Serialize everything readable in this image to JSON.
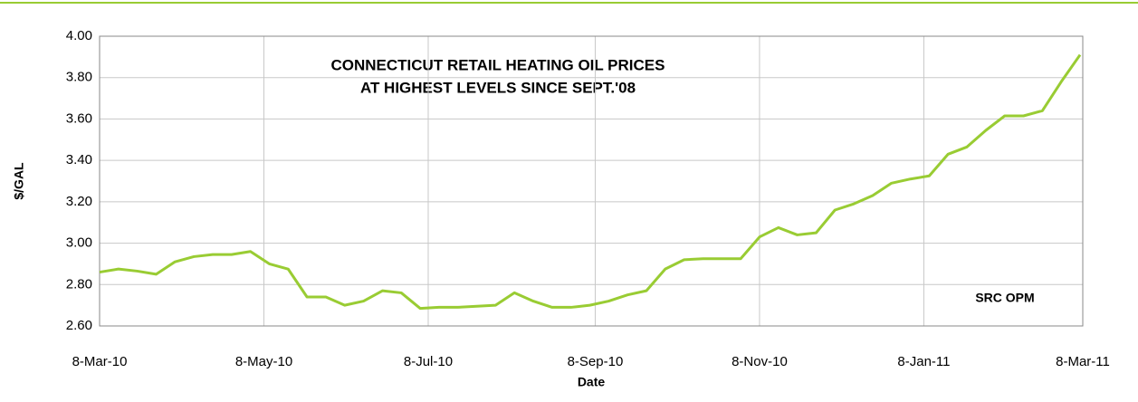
{
  "chart_data": {
    "type": "line",
    "title": [
      "CONNECTICUT RETAIL HEATING OIL PRICES",
      "AT HIGHEST LEVELS SINCE SEPT.'08"
    ],
    "annotation": "SRC OPM",
    "x_label": "Date",
    "y_label": "$/GAL",
    "x": [
      "2010-03-08",
      "2010-03-15",
      "2010-03-22",
      "2010-03-29",
      "2010-04-05",
      "2010-04-12",
      "2010-04-19",
      "2010-04-26",
      "2010-05-03",
      "2010-05-10",
      "2010-05-17",
      "2010-05-24",
      "2010-05-31",
      "2010-06-07",
      "2010-06-14",
      "2010-06-21",
      "2010-06-28",
      "2010-07-05",
      "2010-07-12",
      "2010-07-19",
      "2010-07-26",
      "2010-08-02",
      "2010-08-09",
      "2010-08-16",
      "2010-08-23",
      "2010-08-30",
      "2010-09-06",
      "2010-09-13",
      "2010-09-20",
      "2010-09-27",
      "2010-10-04",
      "2010-10-11",
      "2010-10-18",
      "2010-10-25",
      "2010-11-01",
      "2010-11-08",
      "2010-11-15",
      "2010-11-22",
      "2010-11-29",
      "2010-12-06",
      "2010-12-13",
      "2010-12-20",
      "2010-12-27",
      "2011-01-03",
      "2011-01-10",
      "2011-01-17",
      "2011-01-24",
      "2011-01-31",
      "2011-02-07",
      "2011-02-14",
      "2011-02-21",
      "2011-02-28",
      "2011-03-07"
    ],
    "series": [
      {
        "color": "#99cc33",
        "values": [
          2.86,
          2.875,
          2.865,
          2.85,
          2.91,
          2.935,
          2.945,
          2.945,
          2.96,
          2.9,
          2.875,
          2.74,
          2.74,
          2.7,
          2.72,
          2.77,
          2.76,
          2.685,
          2.69,
          2.69,
          2.695,
          2.7,
          2.76,
          2.72,
          2.69,
          2.69,
          2.7,
          2.72,
          2.75,
          2.77,
          2.875,
          2.92,
          2.925,
          2.925,
          2.925,
          3.03,
          3.075,
          3.04,
          3.05,
          3.16,
          3.19,
          3.23,
          3.29,
          3.31,
          3.325,
          3.43,
          3.465,
          3.545,
          3.615,
          3.615,
          3.64,
          3.78,
          3.91
        ]
      }
    ],
    "xlim": [
      "2010-03-08",
      "2011-03-08"
    ],
    "xticks": [
      {
        "value": "2010-03-08",
        "label": "8-Mar-10"
      },
      {
        "value": "2010-05-08",
        "label": "8-May-10"
      },
      {
        "value": "2010-07-08",
        "label": "8-Jul-10"
      },
      {
        "value": "2010-09-08",
        "label": "8-Sep-10"
      },
      {
        "value": "2010-11-08",
        "label": "8-Nov-10"
      },
      {
        "value": "2011-01-08",
        "label": "8-Jan-11"
      },
      {
        "value": "2011-03-08",
        "label": "8-Mar-11"
      }
    ],
    "ylim": [
      2.6,
      4.0
    ],
    "yticks": [
      {
        "value": 2.6,
        "label": "2.60"
      },
      {
        "value": 2.8,
        "label": "2.80"
      },
      {
        "value": 3.0,
        "label": "3.00"
      },
      {
        "value": 3.2,
        "label": "3.20"
      },
      {
        "value": 3.4,
        "label": "3.40"
      },
      {
        "value": 3.6,
        "label": "3.60"
      },
      {
        "value": 3.8,
        "label": "3.80"
      },
      {
        "value": 4.0,
        "label": "4.00"
      }
    ],
    "grid": true
  }
}
